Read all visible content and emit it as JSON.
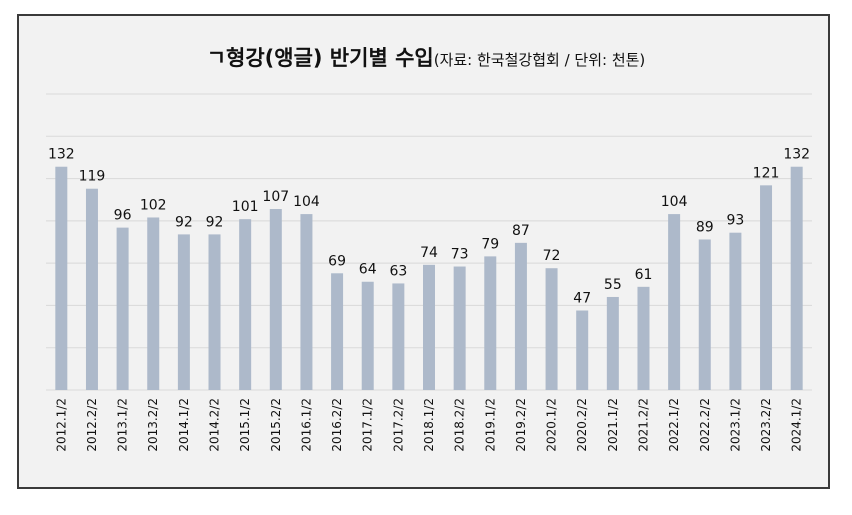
{
  "chart_data": {
    "type": "bar",
    "title": "ㄱ형강(앵글) 반기별 수입",
    "subtitle": "(자료: 한국철강협회 / 단위: 천톤)",
    "categories": [
      "2012.1/2",
      "2012.2/2",
      "2013.1/2",
      "2013.2/2",
      "2014.1/2",
      "2014.2/2",
      "2015.1/2",
      "2015.2/2",
      "2016.1/2",
      "2016.2/2",
      "2017.1/2",
      "2017.2/2",
      "2018.1/2",
      "2018.2/2",
      "2019.1/2",
      "2019.2/2",
      "2020.1/2",
      "2020.2/2",
      "2021.1/2",
      "2021.2/2",
      "2022.1/2",
      "2022.2/2",
      "2023.1/2",
      "2023.2/2",
      "2024.1/2"
    ],
    "values": [
      132,
      119,
      96,
      102,
      92,
      92,
      101,
      107,
      104,
      69,
      64,
      63,
      74,
      73,
      79,
      87,
      72,
      47,
      55,
      61,
      104,
      89,
      93,
      121,
      132
    ],
    "ylim": [
      0,
      175
    ],
    "grid": true,
    "colors": {
      "bar": "#adb9ca",
      "grid": "#d9d9d9",
      "background": "#f2f2f2",
      "border": "#3a3a3a"
    }
  }
}
